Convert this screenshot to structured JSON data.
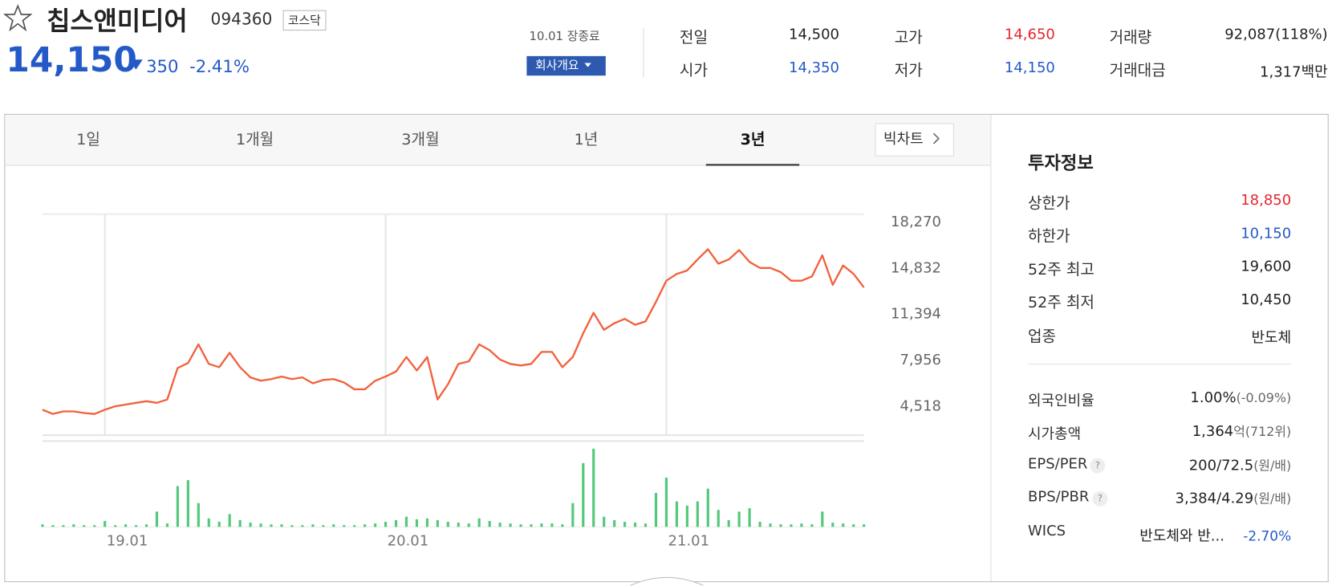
{
  "header": {
    "name": "칩스앤미디어",
    "code": "094360",
    "market": "코스닥",
    "price": "14,150",
    "change": "350",
    "change_pct": "-2.41%",
    "status": "10.01 장종료",
    "company_button": "회사개요"
  },
  "summary": [
    {
      "label": "전일",
      "value": "14,500"
    },
    {
      "label": "시가",
      "value": "14,350"
    },
    {
      "label": "고가",
      "value": "14,650"
    },
    {
      "label": "저가",
      "value": "14,150"
    },
    {
      "label": "거래량",
      "value": "92,087(118%)"
    },
    {
      "label": "거래대금",
      "value": "1,317백만"
    }
  ],
  "tabs": {
    "items": [
      "1일",
      "1개월",
      "3개월",
      "1년",
      "3년"
    ],
    "big_chart": "빅차트"
  },
  "invest": {
    "title": "투자정보",
    "rows": [
      {
        "label": "상한가",
        "value": "18,850"
      },
      {
        "label": "하한가",
        "value": "10,150"
      },
      {
        "label": "52주 최고",
        "value": "19,600"
      },
      {
        "label": "52주 최저",
        "value": "10,450"
      },
      {
        "label": "업종",
        "value": "반도체"
      }
    ],
    "rows2": [
      {
        "label": "외국인비율",
        "value": "1.00%",
        "note": "(-0.09%)"
      },
      {
        "label": "시가총액",
        "value": "1,364",
        "note": "억(712위)"
      },
      {
        "label": "EPS/PER",
        "value": "200/72.5",
        "note": "(원/배)"
      },
      {
        "label": "BPS/PBR",
        "value": "3,384/4.29",
        "note": "(원/배)"
      },
      {
        "label": "WICS",
        "value": "반도체와 반...",
        "note": "-2.70%"
      }
    ]
  },
  "chart_data": {
    "type": "line",
    "color": "#f2603c",
    "volume_color": "#52c97a",
    "grid": false,
    "x_grid": true,
    "categories": [
      null,
      null,
      null,
      null,
      null,
      null,
      "19.01",
      null,
      null,
      null,
      null,
      null,
      null,
      null,
      null,
      null,
      null,
      null,
      null,
      null,
      null,
      null,
      null,
      null,
      null,
      null,
      null,
      null,
      null,
      null,
      null,
      null,
      null,
      "20.01",
      null,
      null,
      null,
      null,
      null,
      null,
      null,
      null,
      null,
      null,
      null,
      null,
      null,
      null,
      null,
      null,
      null,
      null,
      null,
      null,
      null,
      null,
      null,
      null,
      null,
      null,
      "21.01",
      null,
      null,
      null,
      null,
      null,
      null,
      null,
      null,
      null,
      null,
      null,
      null,
      null,
      null,
      null,
      null,
      null,
      null,
      null
    ],
    "values": [
      4200,
      3880,
      4070,
      4070,
      3950,
      3880,
      4200,
      4450,
      4580,
      4710,
      4830,
      4710,
      4960,
      7310,
      7690,
      9080,
      7620,
      7370,
      8450,
      7370,
      6610,
      6360,
      6480,
      6670,
      6480,
      6610,
      6170,
      6420,
      6480,
      6230,
      5720,
      5720,
      6360,
      6670,
      7050,
      8130,
      7120,
      8130,
      4960,
      6100,
      7620,
      7810,
      9080,
      8640,
      7940,
      7620,
      7500,
      7620,
      8510,
      8510,
      7370,
      8130,
      9900,
      11430,
      10160,
      10660,
      10980,
      10540,
      10790,
      12250,
      13830,
      14340,
      14590,
      15420,
      16180,
      15100,
      15420,
      16120,
      15230,
      14780,
      14780,
      14470,
      13830,
      13830,
      14150,
      15730,
      13520,
      14970,
      14340,
      13330
    ],
    "volume": [
      3,
      2,
      2,
      3,
      2,
      2,
      7,
      2,
      3,
      2,
      3,
      18,
      4,
      48,
      55,
      28,
      10,
      6,
      15,
      8,
      5,
      4,
      3,
      3,
      2,
      2,
      3,
      2,
      3,
      2,
      2,
      3,
      4,
      6,
      8,
      12,
      9,
      10,
      8,
      6,
      5,
      4,
      10,
      7,
      5,
      4,
      3,
      3,
      4,
      4,
      3,
      28,
      75,
      92,
      12,
      8,
      6,
      5,
      4,
      40,
      58,
      30,
      25,
      30,
      45,
      20,
      8,
      18,
      22,
      6,
      4,
      3,
      3,
      4,
      3,
      18,
      5,
      4,
      3,
      3
    ],
    "volume_ylim": [
      0,
      100
    ],
    "ylim": [
      2300,
      18800
    ],
    "yticks": [
      {
        "value": 18270,
        "label": "18,270"
      },
      {
        "value": 14832,
        "label": "14,832"
      },
      {
        "value": 11394,
        "label": "11,394"
      },
      {
        "value": 7956,
        "label": "7,956"
      },
      {
        "value": 4518,
        "label": "4,518"
      }
    ]
  }
}
